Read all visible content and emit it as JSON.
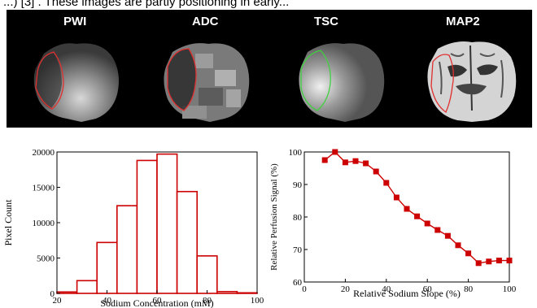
{
  "top_caption": "...) [3] . These images are partly positioning in early...",
  "mri_panel": {
    "labels": [
      "PWI",
      "ADC",
      "TSC",
      "MAP2"
    ],
    "colors": {
      "pwi_roi": "#e03030",
      "adc_roi": "#e03030",
      "tsc_roi": "#40d040",
      "map2_roi": "#e03030"
    }
  },
  "chart_data": [
    {
      "type": "bar",
      "title": "",
      "xlabel": "Sodium Concentration (mM)",
      "ylabel": "Pixel Count",
      "xlim": [
        20,
        100
      ],
      "ylim": [
        0,
        20000
      ],
      "x_ticks": [
        "20",
        "40",
        "60",
        "80",
        "100"
      ],
      "y_ticks": [
        "0",
        "5000",
        "10000",
        "15000",
        "20000"
      ],
      "bins": [
        {
          "from": 20,
          "to": 28,
          "value": 200
        },
        {
          "from": 28,
          "to": 36,
          "value": 1800
        },
        {
          "from": 36,
          "to": 44,
          "value": 7200
        },
        {
          "from": 44,
          "to": 52,
          "value": 12400
        },
        {
          "from": 52,
          "to": 60,
          "value": 18800
        },
        {
          "from": 60,
          "to": 68,
          "value": 19700
        },
        {
          "from": 68,
          "to": 76,
          "value": 14400
        },
        {
          "from": 76,
          "to": 84,
          "value": 5300
        },
        {
          "from": 84,
          "to": 92,
          "value": 250
        },
        {
          "from": 92,
          "to": 100,
          "value": 80
        }
      ],
      "color": "#cc0000",
      "grid": false
    },
    {
      "type": "line",
      "title": "",
      "xlabel": "Relative Sodium Slope (%)",
      "ylabel": "Relative Perfusion Signal (%)",
      "xlim": [
        0,
        100
      ],
      "ylim": [
        60,
        100
      ],
      "x_ticks": [
        "0",
        "20",
        "40",
        "60",
        "80",
        "100"
      ],
      "y_ticks": [
        "60",
        "70",
        "80",
        "90",
        "100"
      ],
      "x": [
        10,
        15,
        20,
        25,
        30,
        35,
        40,
        45,
        50,
        55,
        60,
        65,
        70,
        75,
        80,
        85,
        90,
        95,
        100
      ],
      "y": [
        97.5,
        100,
        96.8,
        97.2,
        96.5,
        94,
        90.5,
        86,
        82.5,
        80.2,
        78,
        76,
        74.2,
        71.3,
        68.8,
        65.8,
        66.3,
        66.6,
        66.6
      ],
      "color": "#cc0000",
      "marker": "square",
      "grid": false
    }
  ]
}
